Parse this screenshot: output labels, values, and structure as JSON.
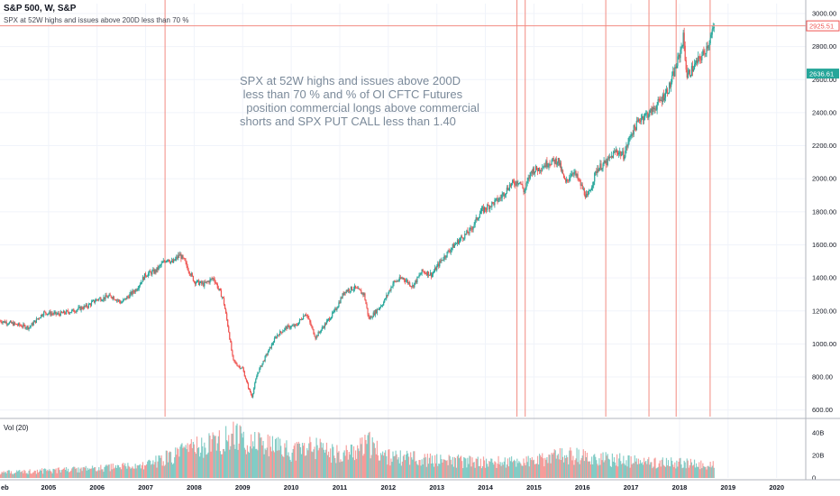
{
  "header": {
    "symbol_title": "S&P 500, W, S&P",
    "study_title": "SPX at 52W highs and issues above 200D less than 70 %",
    "volume_label": "Vol (20)"
  },
  "annotation": {
    "text": "SPX at 52W highs and issues above 200D\n less than 70 % and % of OI CFTC Futures\n  position commercial longs above commercial\nshorts and SPX PUT CALL less than 1.40"
  },
  "colors": {
    "up": "#26a69a",
    "down": "#ef5350",
    "signal_line": "#f28b82",
    "price_tag_red": "#ef5350",
    "price_tag_teal": "#26a69a",
    "grid": "#f0f3fa",
    "axis_border": "#b2b5be"
  },
  "chart_data": {
    "type": "line",
    "price_axis": {
      "ylim": [
        560,
        3060
      ],
      "ticks": [
        600,
        800,
        1000,
        1200,
        1400,
        1600,
        1800,
        2000,
        2200,
        2400,
        2600,
        2800,
        3000
      ],
      "tick_labels": [
        "600.00",
        "800.00",
        "1000.00",
        "1200.00",
        "1400.00",
        "1600.00",
        "1800.00",
        "2000.00",
        "2200.00",
        "2400.00",
        "2600.00",
        "2800.00",
        "3000.00"
      ],
      "last_price_label": "2925.51",
      "last_price": 2925.51,
      "marker_label": "2636.61",
      "marker_value": 2636.61
    },
    "volume_axis": {
      "ylim": [
        0,
        48
      ],
      "ticks": [
        0,
        20,
        40
      ],
      "tick_labels": [
        "0",
        "20B",
        "40B"
      ]
    },
    "x_axis": {
      "xlim": [
        2004.0,
        2020.6
      ],
      "ticks": [
        2005,
        2006,
        2007,
        2008,
        2009,
        2010,
        2011,
        2012,
        2013,
        2014,
        2015,
        2016,
        2017,
        2018,
        2019,
        2020
      ],
      "tick_labels": [
        "2005",
        "2006",
        "2007",
        "2008",
        "2009",
        "2010",
        "2011",
        "2012",
        "2013",
        "2014",
        "2015",
        "2016",
        "2017",
        "2018",
        "2019",
        "2020"
      ],
      "left_edge_label": "eb"
    },
    "price_series": {
      "name": "S&P 500",
      "x": [
        2004.0,
        2004.3,
        2004.6,
        2004.9,
        2005.2,
        2005.5,
        2005.8,
        2006.0,
        2006.3,
        2006.5,
        2006.8,
        2007.0,
        2007.2,
        2007.45,
        2007.55,
        2007.7,
        2007.8,
        2008.0,
        2008.2,
        2008.4,
        2008.6,
        2008.7,
        2008.8,
        2008.9,
        2009.0,
        2009.1,
        2009.19,
        2009.3,
        2009.5,
        2009.7,
        2009.9,
        2010.1,
        2010.3,
        2010.5,
        2010.7,
        2010.9,
        2011.1,
        2011.3,
        2011.5,
        2011.6,
        2011.75,
        2011.9,
        2012.1,
        2012.3,
        2012.5,
        2012.7,
        2012.9,
        2013.1,
        2013.3,
        2013.5,
        2013.7,
        2013.9,
        2014.1,
        2014.3,
        2014.5,
        2014.7,
        2014.8,
        2014.95,
        2015.1,
        2015.3,
        2015.5,
        2015.65,
        2015.8,
        2015.9,
        2016.1,
        2016.3,
        2016.5,
        2016.7,
        2016.85,
        2017.0,
        2017.2,
        2017.4,
        2017.6,
        2017.8,
        2018.0,
        2018.08,
        2018.15,
        2018.3,
        2018.5,
        2018.65,
        2018.72
      ],
      "y": [
        1140,
        1120,
        1100,
        1190,
        1180,
        1200,
        1230,
        1270,
        1290,
        1250,
        1330,
        1420,
        1440,
        1520,
        1490,
        1540,
        1500,
        1380,
        1360,
        1400,
        1270,
        1100,
        900,
        870,
        850,
        750,
        680,
        820,
        940,
        1050,
        1100,
        1110,
        1190,
        1040,
        1120,
        1200,
        1320,
        1340,
        1300,
        1150,
        1200,
        1250,
        1370,
        1400,
        1350,
        1440,
        1420,
        1510,
        1580,
        1640,
        1690,
        1800,
        1840,
        1880,
        1960,
        1990,
        1920,
        2050,
        2060,
        2100,
        2110,
        1970,
        2050,
        2000,
        1880,
        2060,
        2100,
        2170,
        2140,
        2270,
        2370,
        2400,
        2470,
        2560,
        2750,
        2860,
        2620,
        2680,
        2760,
        2860,
        2925.51
      ]
    },
    "volume_series": {
      "name": "Vol (20)",
      "x": [
        2004.0,
        2005.0,
        2006.0,
        2007.0,
        2007.6,
        2008.0,
        2008.8,
        2009.2,
        2010.0,
        2010.4,
        2011.0,
        2011.6,
        2012.0,
        2013.0,
        2014.0,
        2015.0,
        2015.65,
        2016.0,
        2017.0,
        2018.0,
        2018.72
      ],
      "y": [
        5,
        7,
        9,
        12,
        22,
        28,
        40,
        34,
        26,
        30,
        22,
        32,
        20,
        17,
        15,
        16,
        22,
        20,
        16,
        14,
        12
      ]
    },
    "signal_dates": [
      2007.4,
      2014.65,
      2014.82,
      2016.48,
      2017.37,
      2017.93,
      2018.63
    ]
  }
}
